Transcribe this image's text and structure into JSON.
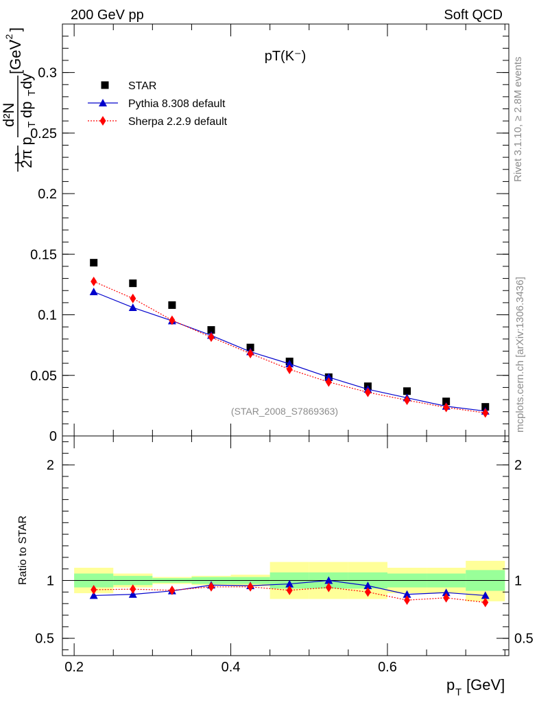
{
  "header": {
    "left": "200 GeV pp",
    "right": "Soft QCD"
  },
  "side_labels": {
    "rivet": "Rivet 3.1.10, ≥ 2.8M events",
    "mcplots": "mcplots.cern.ch [arXiv:1306.3436]"
  },
  "chart_data": [
    {
      "type": "scatter",
      "panel": "main",
      "title": "pT(K⁻)",
      "watermark": "(STAR_2008_S7869363)",
      "ylabel": {
        "one": "1",
        "two_pi": "2π p",
        "sub_T": "T",
        "numerator": "d²N",
        "denominator": "dp",
        "dy": "dy",
        "unit": "[GeV",
        "unit_exp": "-2",
        "unit_close": "]"
      },
      "xlim": [
        0.185,
        0.755
      ],
      "ylim": [
        0,
        0.34
      ],
      "yticks": [
        0,
        0.05,
        0.1,
        0.15,
        0.2,
        0.25,
        0.3
      ],
      "ytick_labels": [
        "0",
        "0.05",
        "0.1",
        "0.15",
        "0.2",
        "0.25",
        "0.3"
      ],
      "legend_position": "top-left",
      "series": [
        {
          "name": "STAR",
          "marker": "square",
          "color": "#000000",
          "x": [
            0.225,
            0.275,
            0.325,
            0.375,
            0.425,
            0.475,
            0.525,
            0.575,
            0.625,
            0.675,
            0.725
          ],
          "y": [
            0.143,
            0.126,
            0.108,
            0.0875,
            0.073,
            0.0615,
            0.0485,
            0.041,
            0.037,
            0.0285,
            0.024
          ]
        },
        {
          "name": "Pythia 8.308 default",
          "marker": "triangle",
          "color": "#0000cc",
          "line": "solid",
          "x": [
            0.225,
            0.275,
            0.325,
            0.375,
            0.425,
            0.475,
            0.525,
            0.575,
            0.625,
            0.675,
            0.725
          ],
          "y": [
            0.119,
            0.106,
            0.095,
            0.083,
            0.0695,
            0.0595,
            0.0485,
            0.0385,
            0.0315,
            0.0245,
            0.0205
          ]
        },
        {
          "name": "Sherpa 2.2.9 default",
          "marker": "diamond",
          "color": "#ff0000",
          "line": "dotted",
          "x": [
            0.225,
            0.275,
            0.325,
            0.375,
            0.425,
            0.475,
            0.525,
            0.575,
            0.625,
            0.675,
            0.725
          ],
          "y": [
            0.1275,
            0.1135,
            0.0955,
            0.0815,
            0.068,
            0.055,
            0.0445,
            0.036,
            0.0295,
            0.0235,
            0.019
          ]
        }
      ]
    },
    {
      "type": "line",
      "panel": "ratio",
      "ylabel": "Ratio to STAR",
      "xlabel": "p",
      "xlabel_sub": "T",
      "xlabel_unit": "[GeV]",
      "xlim": [
        0.185,
        0.755
      ],
      "ylim": [
        0.35,
        2.25
      ],
      "xticks": [
        0.2,
        0.4,
        0.6
      ],
      "xtick_labels": [
        "0.2",
        "0.4",
        "0.6"
      ],
      "yticks": [
        0.5,
        1,
        2
      ],
      "ytick_labels": [
        "0.5",
        "1",
        "2"
      ],
      "bands": [
        {
          "x0": 0.2,
          "x1": 0.25,
          "yellow": [
            0.89,
            1.11
          ],
          "green": [
            0.94,
            1.06
          ]
        },
        {
          "x0": 0.25,
          "x1": 0.3,
          "yellow": [
            0.94,
            1.06
          ],
          "green": [
            0.96,
            1.04
          ]
        },
        {
          "x0": 0.3,
          "x1": 0.35,
          "yellow": [
            0.97,
            1.03
          ],
          "green": [
            0.98,
            1.02
          ]
        },
        {
          "x0": 0.35,
          "x1": 0.4,
          "yellow": [
            0.96,
            1.04
          ],
          "green": [
            0.97,
            1.03
          ]
        },
        {
          "x0": 0.4,
          "x1": 0.45,
          "yellow": [
            0.95,
            1.05
          ],
          "green": [
            0.97,
            1.03
          ]
        },
        {
          "x0": 0.45,
          "x1": 0.5,
          "yellow": [
            0.84,
            1.16
          ],
          "green": [
            0.93,
            1.07
          ]
        },
        {
          "x0": 0.5,
          "x1": 0.55,
          "yellow": [
            0.84,
            1.16
          ],
          "green": [
            0.93,
            1.07
          ]
        },
        {
          "x0": 0.55,
          "x1": 0.6,
          "yellow": [
            0.84,
            1.16
          ],
          "green": [
            0.93,
            1.07
          ]
        },
        {
          "x0": 0.6,
          "x1": 0.65,
          "yellow": [
            0.89,
            1.11
          ],
          "green": [
            0.94,
            1.06
          ]
        },
        {
          "x0": 0.65,
          "x1": 0.7,
          "yellow": [
            0.89,
            1.11
          ],
          "green": [
            0.94,
            1.06
          ]
        },
        {
          "x0": 0.7,
          "x1": 0.75,
          "yellow": [
            0.82,
            1.17
          ],
          "green": [
            0.91,
            1.09
          ]
        }
      ],
      "series": [
        {
          "name": "Pythia 8.308 default",
          "marker": "triangle",
          "color": "#0000cc",
          "line": "solid",
          "x": [
            0.225,
            0.275,
            0.325,
            0.375,
            0.425,
            0.475,
            0.525,
            0.575,
            0.625,
            0.675,
            0.725
          ],
          "y": [
            0.87,
            0.88,
            0.91,
            0.96,
            0.955,
            0.97,
            1.0,
            0.955,
            0.88,
            0.895,
            0.87
          ]
        },
        {
          "name": "Sherpa 2.2.9 default",
          "marker": "diamond",
          "color": "#ff0000",
          "line": "dotted",
          "x": [
            0.225,
            0.275,
            0.325,
            0.375,
            0.425,
            0.475,
            0.525,
            0.575,
            0.625,
            0.675,
            0.725
          ],
          "y": [
            0.92,
            0.925,
            0.915,
            0.945,
            0.945,
            0.915,
            0.94,
            0.9,
            0.83,
            0.85,
            0.81
          ]
        }
      ]
    }
  ]
}
